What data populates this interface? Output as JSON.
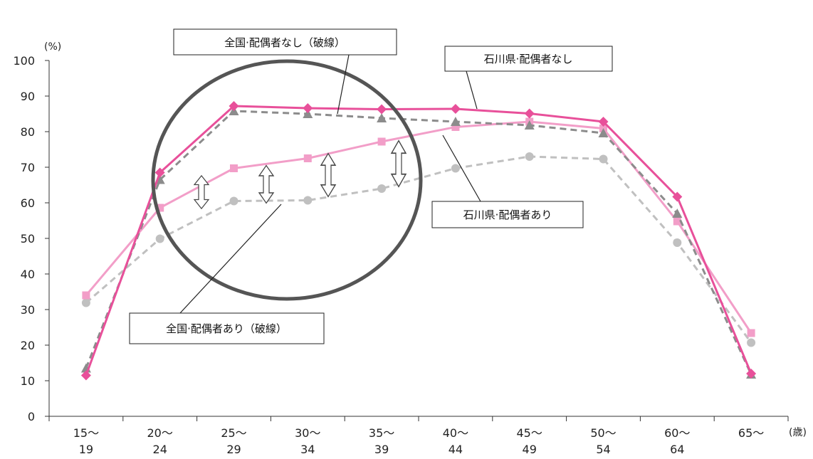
{
  "chart_data": {
    "type": "line",
    "y_unit": "(%)",
    "x_unit": "(歳)",
    "ylim": [
      0,
      100
    ],
    "y_ticks": [
      0,
      10,
      20,
      30,
      40,
      50,
      60,
      70,
      80,
      90,
      100
    ],
    "categories": [
      {
        "line1": "15〜",
        "line2": "19"
      },
      {
        "line1": "20〜",
        "line2": "24"
      },
      {
        "line1": "25〜",
        "line2": "29"
      },
      {
        "line1": "30〜",
        "line2": "34"
      },
      {
        "line1": "35〜",
        "line2": "39"
      },
      {
        "line1": "40〜",
        "line2": "44"
      },
      {
        "line1": "45〜",
        "line2": "49"
      },
      {
        "line1": "50〜",
        "line2": "54"
      },
      {
        "line1": "60〜",
        "line2": "64"
      },
      {
        "line1": "65〜",
        "line2": ""
      }
    ],
    "series": [
      {
        "name": "石川県·配偶者なし",
        "color": "#e8509a",
        "dash": false,
        "marker": "diamond",
        "values": [
          11.5,
          68.5,
          87.2,
          86.6,
          86.3,
          86.4,
          85.1,
          82.8,
          61.7,
          12.0
        ]
      },
      {
        "name": "全国·配偶者なし（破線）",
        "color": "#8c8c8c",
        "dash": true,
        "marker": "triangle",
        "values": [
          13.5,
          66.5,
          85.8,
          85.0,
          83.8,
          82.8,
          81.8,
          79.6,
          57.0,
          11.8
        ]
      },
      {
        "name": "石川県·配偶者あり",
        "color": "#f29ec8",
        "dash": false,
        "marker": "square",
        "values": [
          34.0,
          58.6,
          69.7,
          72.5,
          77.2,
          81.3,
          82.8,
          80.9,
          54.8,
          23.4
        ]
      },
      {
        "name": "全国·配偶者あり（破線）",
        "color": "#c0c0c0",
        "dash": true,
        "marker": "circle",
        "values": [
          31.9,
          49.9,
          60.5,
          60.7,
          64.0,
          69.7,
          73.0,
          72.3,
          48.8,
          20.7
        ]
      }
    ]
  }
}
